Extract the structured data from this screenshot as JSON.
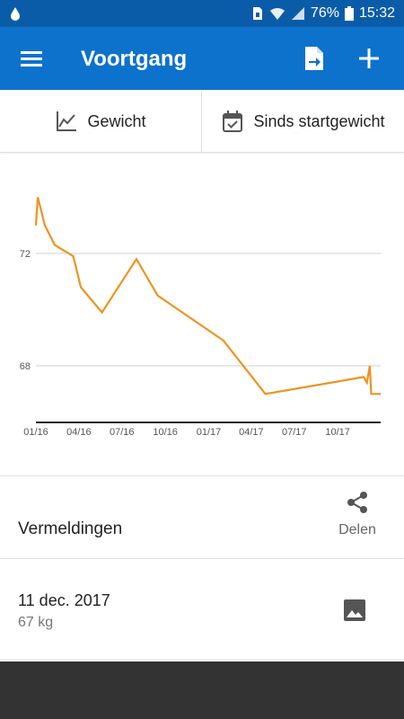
{
  "status_bar": {
    "battery": "76%",
    "time": "15:32"
  },
  "app_bar": {
    "title": "Voortgang"
  },
  "filters": {
    "metric_label": "Gewicht",
    "range_label": "Sinds startgewicht"
  },
  "chart_data": {
    "type": "line",
    "x_ticks": [
      "01/16",
      "04/16",
      "07/16",
      "10/16",
      "01/17",
      "04/17",
      "07/17",
      "10/17"
    ],
    "y_ticks": [
      72,
      68
    ],
    "ylim": [
      65.9,
      74
    ],
    "grid": true,
    "color": "#f0921e",
    "series": [
      {
        "values": [
          {
            "x": "2016-01-01",
            "y": 73.0
          },
          {
            "x": "2016-01-05",
            "y": 74.0
          },
          {
            "x": "2016-01-20",
            "y": 73.0
          },
          {
            "x": "2016-02-10",
            "y": 72.3
          },
          {
            "x": "2016-03-20",
            "y": 71.9
          },
          {
            "x": "2016-04-05",
            "y": 70.8
          },
          {
            "x": "2016-05-20",
            "y": 69.9
          },
          {
            "x": "2016-08-01",
            "y": 71.8
          },
          {
            "x": "2016-09-15",
            "y": 70.5
          },
          {
            "x": "2017-02-01",
            "y": 68.9
          },
          {
            "x": "2017-05-01",
            "y": 67.0
          },
          {
            "x": "2017-11-25",
            "y": 67.6
          },
          {
            "x": "2017-12-02",
            "y": 67.4
          },
          {
            "x": "2017-12-08",
            "y": 68.0
          },
          {
            "x": "2017-12-11",
            "y": 67.0
          },
          {
            "x": "2017-12-31",
            "y": 67.0
          }
        ]
      }
    ]
  },
  "entries_section": {
    "title": "Vermeldingen",
    "share_label": "Delen"
  },
  "entries": [
    {
      "date": "11 dec. 2017",
      "weight": "67 kg"
    }
  ],
  "icons": {
    "menu": "hamburger-menu-icon",
    "export": "file-export-icon",
    "add": "plus-icon",
    "metric": "line-chart-icon",
    "range": "calendar-check-icon",
    "share": "share-icon",
    "photo": "image-icon"
  },
  "colors": {
    "app_bar": "#0d72cc",
    "status_bar": "#0b5ca8",
    "line": "#f0921e"
  }
}
